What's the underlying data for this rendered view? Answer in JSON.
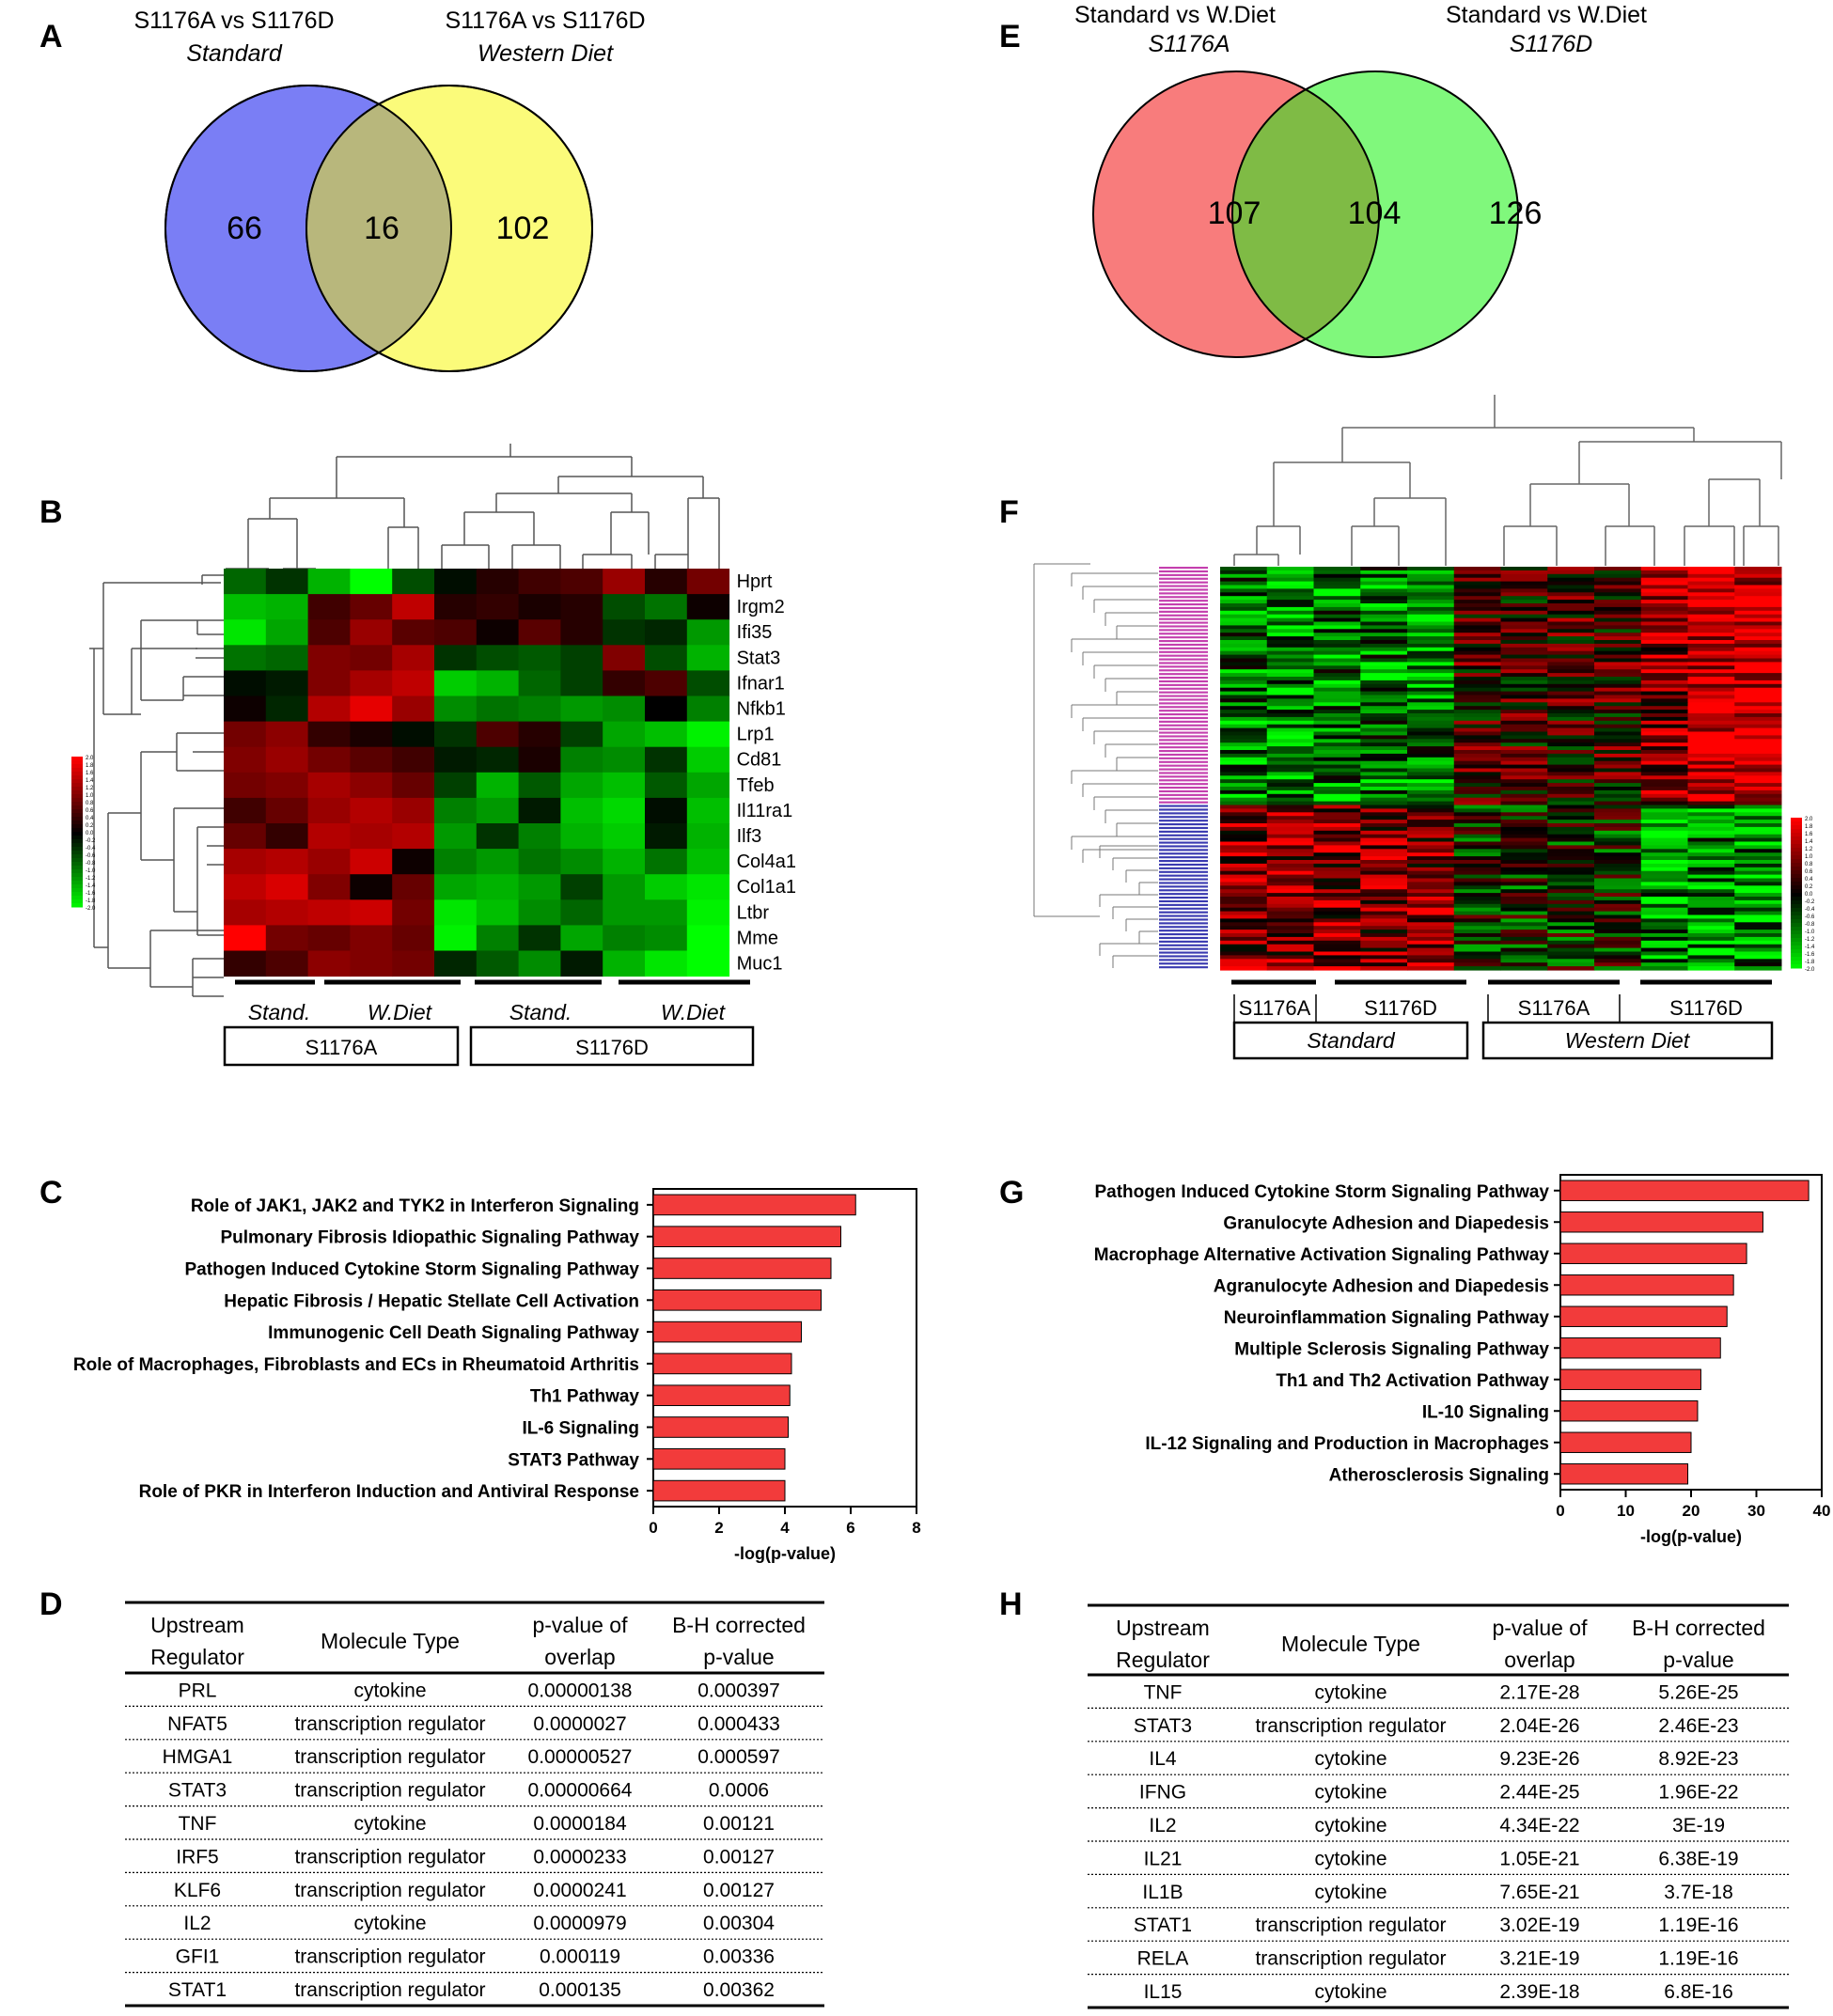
{
  "panels": {
    "A": "A",
    "B": "B",
    "C": "C",
    "D": "D",
    "E": "E",
    "F": "F",
    "G": "G",
    "H": "H"
  },
  "venn_a": {
    "left_title": "S1176A vs S1176D",
    "left_sub": "Standard",
    "right_title": "S1176A vs S1176D",
    "right_sub": "Western Diet",
    "left_only": "66",
    "overlap": "16",
    "right_only": "102",
    "left_color": "#7a7ef5",
    "right_color": "#fbfb7a",
    "overlap_color": "#b8b77c"
  },
  "venn_e": {
    "left_title": "Standard vs W.Diet",
    "left_sub": "S1176A",
    "right_title": "Standard vs W.Diet",
    "right_sub": "S1176D",
    "left_only": "107",
    "overlap": "104",
    "right_only": "126",
    "left_color": "#f87c7c",
    "right_color": "#80f87c",
    "overlap_color": "#7fbb45"
  },
  "heatmap_b": {
    "genes": [
      "Hprt",
      "Irgm2",
      "Ifi35",
      "Stat3",
      "Ifnar1",
      "Nfkb1",
      "Lrp1",
      "Cd81",
      "Tfeb",
      "Il11ra1",
      "Ilf3",
      "Col4a1",
      "Col1a1",
      "Ltbr",
      "Mme",
      "Muc1"
    ],
    "diet_labels": [
      "Stand.",
      "W.Diet",
      "Stand.",
      "W.Diet"
    ],
    "genotype_labels": [
      "S1176A",
      "S1176D"
    ],
    "colorbar_ticks": [
      "2.0",
      "1.8",
      "1.6",
      "1.4",
      "1.2",
      "1.0",
      "0.8",
      "0.6",
      "0.4",
      "0.2",
      "0.0",
      "-0.2",
      "-0.4",
      "-0.6",
      "-0.8",
      "-1.0",
      "-1.2",
      "-1.4",
      "-1.6",
      "-1.8",
      "-2.0"
    ],
    "values": [
      [
        -0.8,
        -0.4,
        -1.4,
        -2.0,
        -0.6,
        -0.1,
        0.3,
        0.5,
        0.6,
        1.2,
        0.3,
        0.9
      ],
      [
        -1.5,
        -1.4,
        0.5,
        0.8,
        1.5,
        0.3,
        0.4,
        0.2,
        0.3,
        -0.6,
        -0.9,
        0.1
      ],
      [
        -1.8,
        -1.3,
        0.6,
        1.2,
        0.7,
        0.6,
        0.1,
        0.7,
        0.3,
        -0.4,
        -0.3,
        -1.2
      ],
      [
        -0.9,
        -0.8,
        1.0,
        0.9,
        1.3,
        -0.4,
        -0.6,
        -0.7,
        -0.5,
        1.0,
        -0.6,
        -1.4
      ],
      [
        -0.1,
        -0.2,
        1.0,
        1.3,
        1.5,
        -1.6,
        -1.4,
        -0.8,
        -0.5,
        0.4,
        0.6,
        -0.6
      ],
      [
        0.1,
        -0.3,
        1.4,
        1.8,
        1.2,
        -1.1,
        -0.9,
        -1.0,
        -1.2,
        -1.1,
        0.0,
        -1.0
      ],
      [
        0.9,
        1.1,
        0.4,
        0.2,
        -0.1,
        -0.4,
        0.6,
        0.3,
        -0.5,
        -1.3,
        -1.5,
        -1.9
      ],
      [
        1.0,
        1.2,
        0.9,
        0.7,
        0.5,
        -0.2,
        -0.3,
        0.2,
        -1.0,
        -1.1,
        -0.4,
        -1.6
      ],
      [
        0.9,
        1.0,
        1.3,
        1.1,
        0.8,
        -0.5,
        -1.4,
        -0.7,
        -1.3,
        -1.5,
        -0.7,
        -1.3
      ],
      [
        0.5,
        0.8,
        1.2,
        1.4,
        1.2,
        -1.0,
        -1.2,
        -0.2,
        -1.5,
        -1.7,
        -0.1,
        -1.5
      ],
      [
        0.8,
        0.4,
        1.4,
        1.3,
        1.4,
        -1.2,
        -0.4,
        -1.0,
        -1.4,
        -1.6,
        -0.2,
        -1.4
      ],
      [
        1.3,
        1.4,
        1.2,
        1.6,
        0.1,
        -1.0,
        -1.2,
        -0.9,
        -1.1,
        -1.4,
        -0.9,
        -1.5
      ],
      [
        1.5,
        1.7,
        1.0,
        0.1,
        0.8,
        -1.3,
        -1.4,
        -1.2,
        -0.5,
        -1.2,
        -1.6,
        -1.8
      ],
      [
        1.3,
        1.4,
        1.5,
        1.6,
        0.9,
        -1.8,
        -1.5,
        -1.1,
        -0.8,
        -1.2,
        -1.2,
        -1.9
      ],
      [
        2.0,
        0.9,
        0.8,
        1.0,
        0.8,
        -1.9,
        -1.0,
        -0.4,
        -1.3,
        -1.0,
        -1.1,
        -2.0
      ],
      [
        0.4,
        0.6,
        1.1,
        1.0,
        0.9,
        -0.3,
        -0.7,
        -1.1,
        -0.2,
        -1.4,
        -1.8,
        -2.0
      ]
    ]
  },
  "heatmap_f": {
    "genotype_labels": [
      "S1176A",
      "S1176D",
      "S1176A",
      "S1176D"
    ],
    "diet_labels": [
      "Standard",
      "Western Diet"
    ],
    "colorbar_ticks": [
      "2.0",
      "1.8",
      "1.6",
      "1.4",
      "1.2",
      "1.0",
      "0.8",
      "0.6",
      "0.4",
      "0.2",
      "0.0",
      "-0.2",
      "-0.4",
      "-0.6",
      "-0.8",
      "-1.0",
      "-1.2",
      "-1.4",
      "-1.6",
      "-1.8",
      "-2.0"
    ],
    "cluster_colors": [
      "#c43fae",
      "#3a3ab0"
    ]
  },
  "chart_data": [
    {
      "type": "bar",
      "orientation": "horizontal",
      "categories": [
        "Role of JAK1, JAK2 and TYK2 in Interferon Signaling",
        "Pulmonary Fibrosis Idiopathic Signaling Pathway",
        "Pathogen Induced Cytokine Storm Signaling Pathway",
        "Hepatic Fibrosis / Hepatic Stellate Cell Activation",
        "Immunogenic Cell Death Signaling Pathway",
        "Role of Macrophages, Fibroblasts and ECs in Rheumatoid Arthritis",
        "Th1 Pathway",
        "IL-6 Signaling",
        "STAT3 Pathway",
        "Role of PKR in Interferon Induction and Antiviral Response"
      ],
      "values": [
        6.15,
        5.7,
        5.4,
        5.1,
        4.5,
        4.2,
        4.15,
        4.1,
        4.0,
        4.0
      ],
      "xlabel": "-log(p-value)",
      "xlim": [
        0,
        8
      ],
      "xticks": [
        "0",
        "2",
        "4",
        "6",
        "8"
      ],
      "bar_color": "#f23b3b"
    },
    {
      "type": "bar",
      "orientation": "horizontal",
      "categories": [
        "Pathogen Induced Cytokine Storm Signaling Pathway",
        "Granulocyte Adhesion and Diapedesis",
        "Macrophage Alternative Activation Signaling Pathway",
        "Agranulocyte Adhesion and Diapedesis",
        "Neuroinflammation Signaling Pathway",
        "Multiple Sclerosis Signaling Pathway",
        "Th1 and Th2 Activation Pathway",
        "IL-10 Signaling",
        "IL-12 Signaling and Production in Macrophages",
        "Atherosclerosis Signaling"
      ],
      "values": [
        38,
        31,
        28.5,
        26.5,
        25.5,
        24.5,
        21.5,
        21,
        20,
        19.5
      ],
      "xlabel": "-log(p-value)",
      "xlim": [
        0,
        40
      ],
      "xticks": [
        "0",
        "10",
        "20",
        "30",
        "40"
      ],
      "bar_color": "#f23b3b"
    }
  ],
  "table_d": {
    "headers": [
      [
        "Upstream",
        "Regulator"
      ],
      [
        "Molecule Type",
        ""
      ],
      [
        "p-value of",
        "overlap"
      ],
      [
        "B-H corrected",
        "p-value"
      ]
    ],
    "rows": [
      [
        "PRL",
        "cytokine",
        "0.00000138",
        "0.000397"
      ],
      [
        "NFAT5",
        "transcription regulator",
        "0.0000027",
        "0.000433"
      ],
      [
        "HMGA1",
        "transcription regulator",
        "0.00000527",
        "0.000597"
      ],
      [
        "STAT3",
        "transcription regulator",
        "0.00000664",
        "0.0006"
      ],
      [
        "TNF",
        "cytokine",
        "0.0000184",
        "0.00121"
      ],
      [
        "IRF5",
        "transcription regulator",
        "0.0000233",
        "0.00127"
      ],
      [
        "KLF6",
        "transcription regulator",
        "0.0000241",
        "0.00127"
      ],
      [
        "IL2",
        "cytokine",
        "0.0000979",
        "0.00304"
      ],
      [
        "GFI1",
        "transcription regulator",
        "0.000119",
        "0.00336"
      ],
      [
        "STAT1",
        "transcription regulator",
        "0.000135",
        "0.00362"
      ]
    ]
  },
  "table_h": {
    "headers": [
      [
        "Upstream",
        "Regulator"
      ],
      [
        "Molecule Type",
        ""
      ],
      [
        "p-value of",
        "overlap"
      ],
      [
        "B-H corrected",
        "p-value"
      ]
    ],
    "rows": [
      [
        "TNF",
        "cytokine",
        "2.17E-28",
        "5.26E-25"
      ],
      [
        "STAT3",
        "transcription regulator",
        "2.04E-26",
        "2.46E-23"
      ],
      [
        "IL4",
        "cytokine",
        "9.23E-26",
        "8.92E-23"
      ],
      [
        "IFNG",
        "cytokine",
        "2.44E-25",
        "1.96E-22"
      ],
      [
        "IL2",
        "cytokine",
        "4.34E-22",
        "3E-19"
      ],
      [
        "IL21",
        "cytokine",
        "1.05E-21",
        "6.38E-19"
      ],
      [
        "IL1B",
        "cytokine",
        "7.65E-21",
        "3.7E-18"
      ],
      [
        "STAT1",
        "transcription regulator",
        "3.02E-19",
        "1.19E-16"
      ],
      [
        "RELA",
        "transcription regulator",
        "3.21E-19",
        "1.19E-16"
      ],
      [
        "IL15",
        "cytokine",
        "2.39E-18",
        "6.8E-16"
      ]
    ]
  }
}
